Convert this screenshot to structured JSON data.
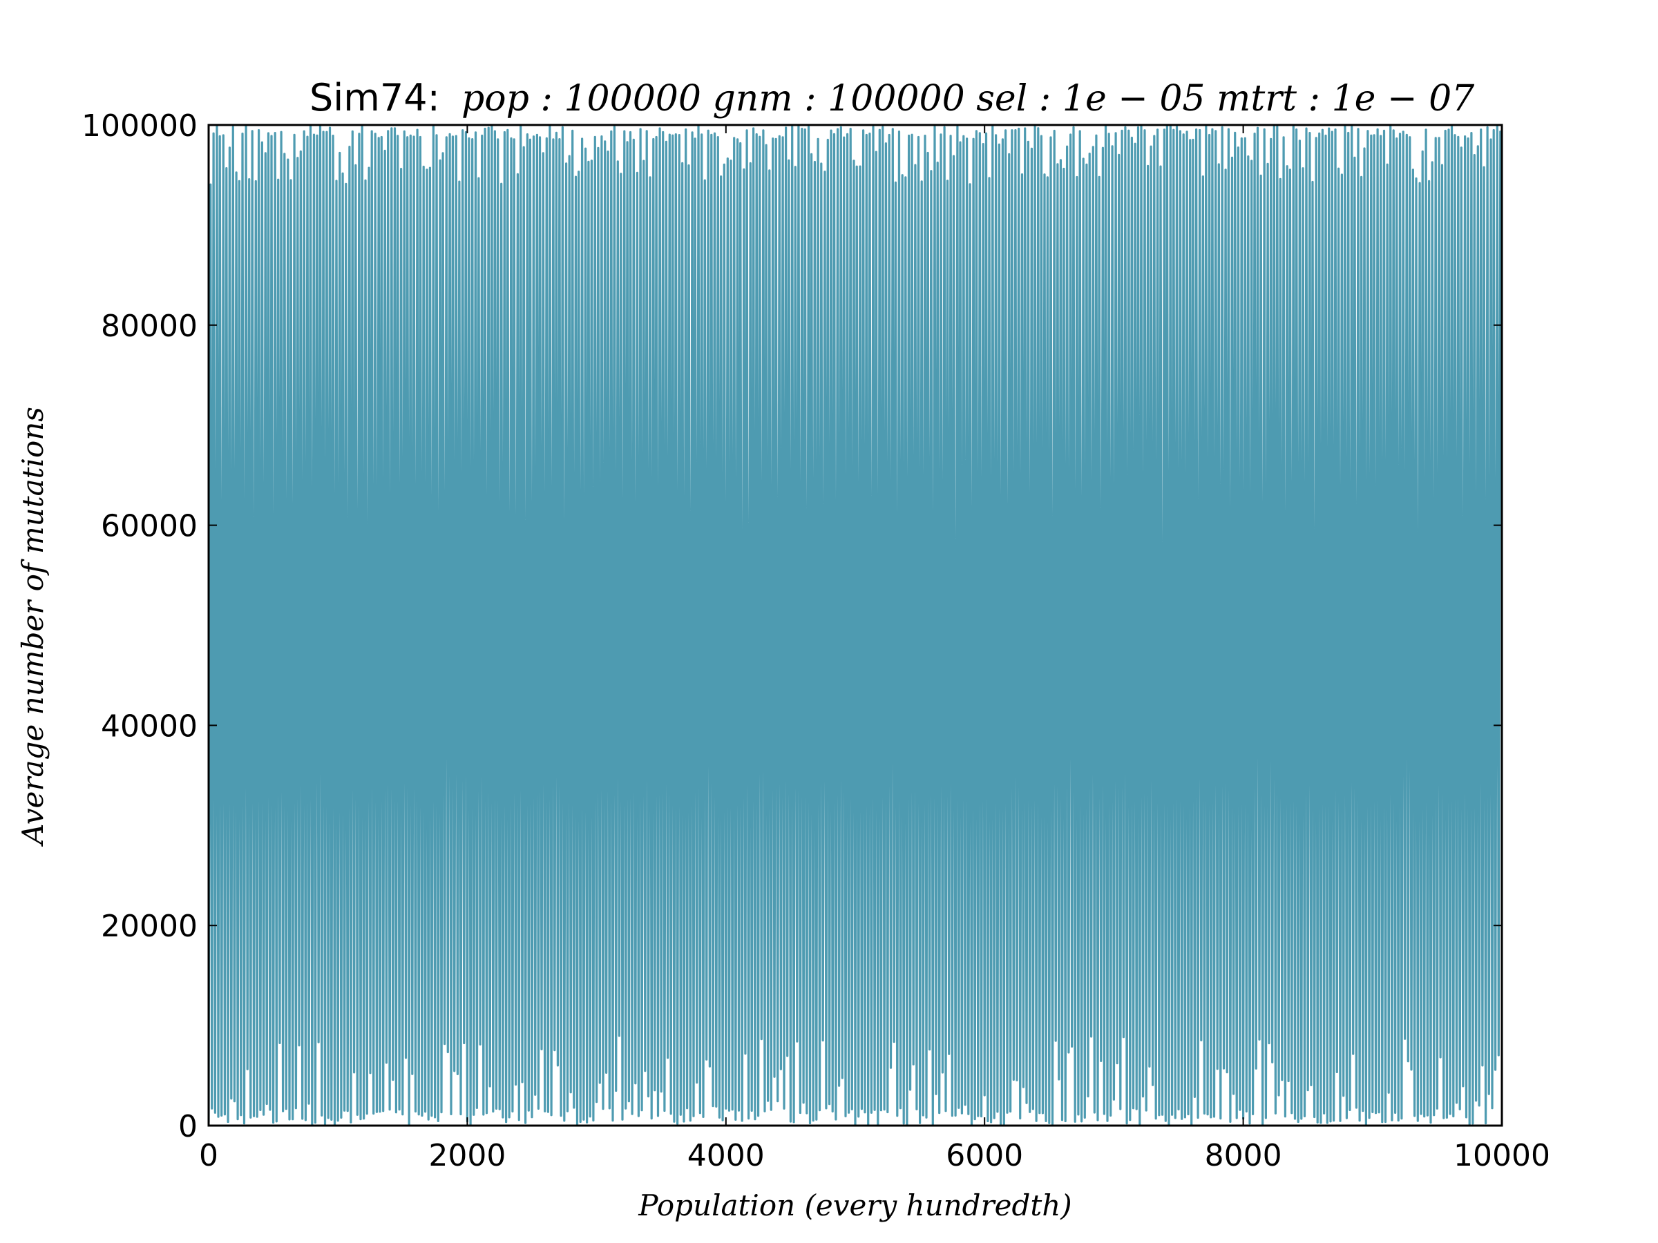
{
  "chart_data": {
    "type": "line",
    "title_prefix": "Sim74:",
    "title_params": "pop : 100000  gnm : 100000  sel : 1e − 05  mtrt : 1e − 07",
    "xlabel": "Population (every hundredth)",
    "ylabel": "Average number of mutations",
    "xlim": [
      0,
      10000
    ],
    "ylim": [
      0,
      100000
    ],
    "xticks": [
      0,
      2000,
      4000,
      6000,
      8000,
      10000
    ],
    "yticks": [
      0,
      20000,
      40000,
      60000,
      80000,
      100000
    ],
    "grid": false,
    "series": [
      {
        "color": "#4e9bb1",
        "oscillation": "rapid sawtooth between ~0 and ~100000",
        "cycles": 400,
        "x": [
          0,
          50,
          100,
          150,
          200,
          250,
          300,
          350,
          400,
          450,
          500,
          550,
          600,
          650,
          700,
          750,
          800,
          850,
          900,
          950,
          1000,
          1050,
          1100,
          1150,
          1200,
          1250,
          1300,
          1350,
          1400,
          1450,
          1500
        ],
        "y": [
          2000,
          98500,
          1200,
          97800,
          800,
          98200,
          1500,
          97600,
          900,
          98400,
          1100,
          99100,
          700,
          98800,
          1300,
          99400,
          500,
          98600,
          1000,
          99200,
          600,
          99500,
          1400,
          98900,
          800,
          99300,
          1100,
          99000,
          700,
          98700,
          900
        ]
      }
    ]
  }
}
